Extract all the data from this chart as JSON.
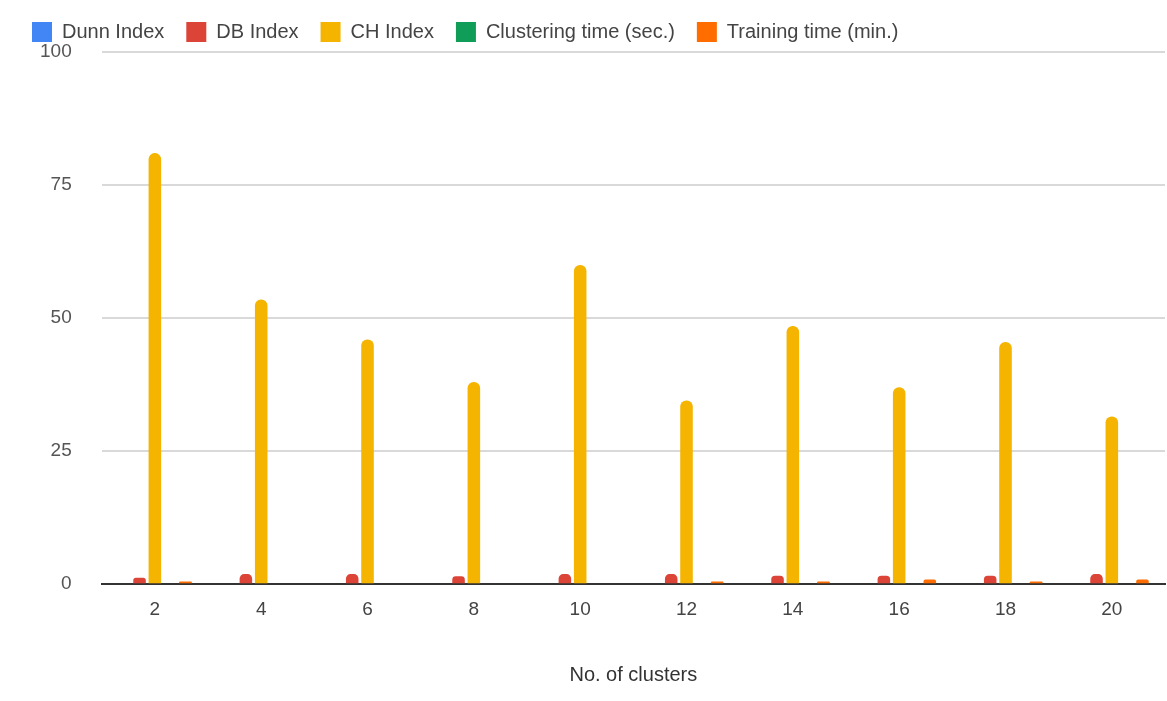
{
  "chart_data": {
    "type": "bar",
    "xlabel": "No. of clusters",
    "categories": [
      "2",
      "4",
      "6",
      "8",
      "10",
      "12",
      "14",
      "16",
      "18",
      "20"
    ],
    "series": [
      {
        "name": "Dunn Index",
        "color": "#4285f4",
        "values": [
          0,
          0,
          0,
          0,
          0,
          0,
          0,
          0,
          0,
          0
        ]
      },
      {
        "name": "DB Index",
        "color": "#db4437",
        "values": [
          1.2,
          1.9,
          1.9,
          1.5,
          1.9,
          1.9,
          1.6,
          1.6,
          1.6,
          1.9
        ]
      },
      {
        "name": "CH Index",
        "color": "#f4b400",
        "values": [
          81,
          53.5,
          46,
          38,
          60,
          34.5,
          48.5,
          37,
          45.5,
          31.5
        ]
      },
      {
        "name": "Clustering time (sec.)",
        "color": "#0f9d58",
        "values": [
          0,
          0,
          0,
          0,
          0,
          0,
          0,
          0,
          0,
          0
        ]
      },
      {
        "name": "Training time (min.)",
        "color": "#ff6d00",
        "values": [
          0.5,
          0,
          0,
          0,
          0,
          0.5,
          0.5,
          0.9,
          0.5,
          0.9
        ]
      }
    ],
    "ylim": [
      0,
      100
    ],
    "yticks": [
      0,
      25,
      50,
      75,
      100
    ],
    "grid": "y",
    "legend": "top"
  }
}
